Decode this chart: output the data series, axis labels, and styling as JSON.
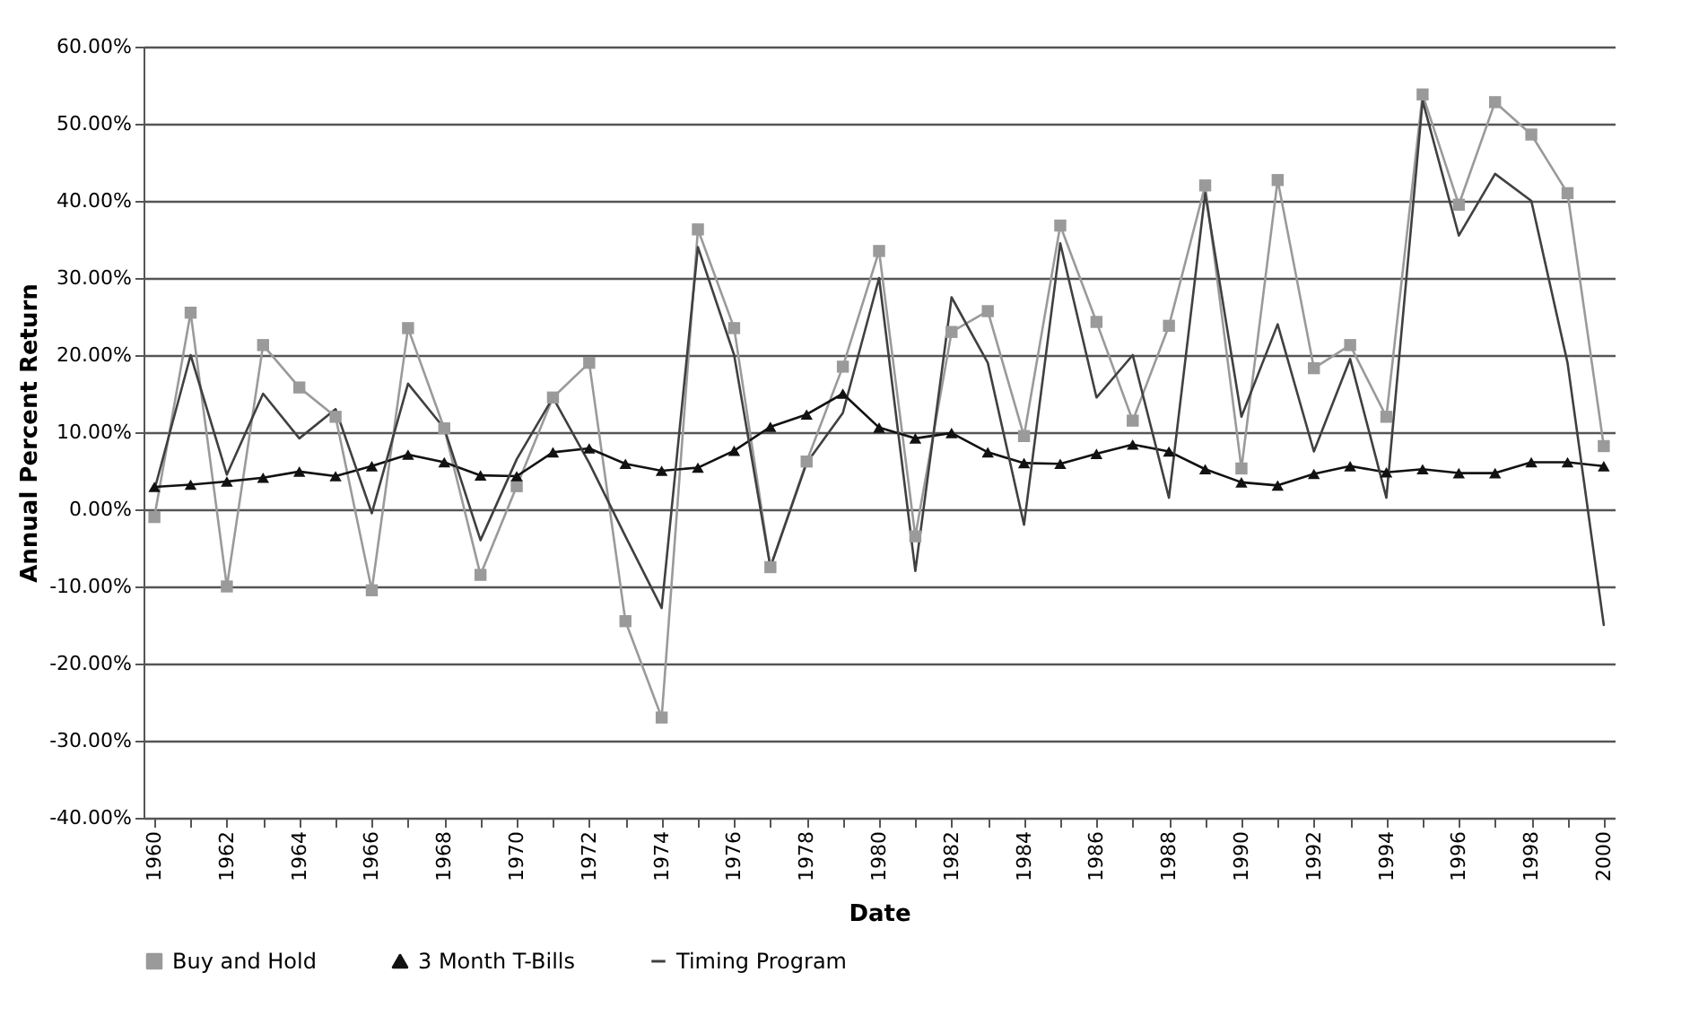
{
  "chart_data": {
    "type": "line",
    "xlabel": "Date",
    "ylabel": "Annual Percent Return",
    "categories": [
      "1960",
      null,
      "1962",
      null,
      "1964",
      null,
      "1966",
      null,
      "1968",
      null,
      "1970",
      null,
      "1972",
      null,
      "1974",
      null,
      "1976",
      null,
      "1978",
      null,
      "1980",
      null,
      "1982",
      null,
      "1984",
      null,
      "1986",
      null,
      "1988",
      null,
      "1990",
      null,
      "1992",
      null,
      "1994",
      null,
      "1996",
      null,
      "1998",
      null,
      "2000"
    ],
    "series": [
      {
        "name": "Buy and Hold",
        "color": "#9a9a9a",
        "marker": "square",
        "values": [
          -1,
          25.5,
          -10,
          21.3,
          15.8,
          12,
          -10.5,
          23.5,
          10.5,
          -8.5,
          3,
          14.5,
          19,
          -14.5,
          -27,
          36.3,
          23.5,
          -7.5,
          6.2,
          18.5,
          33.5,
          -3.5,
          23,
          25.7,
          9.5,
          36.8,
          24.3,
          11.5,
          23.8,
          42,
          5.3,
          42.7,
          18.3,
          21.3,
          12,
          53.8,
          39.5,
          52.8,
          48.6,
          41,
          8.2
        ]
      },
      {
        "name": "3 Month T-Bills",
        "color": "#111111",
        "marker": "triangle",
        "values": [
          2.9,
          3.2,
          3.6,
          4.1,
          4.9,
          4.3,
          5.6,
          7.1,
          6.1,
          4.4,
          4.3,
          7.4,
          7.9,
          5.9,
          5.0,
          5.4,
          7.6,
          10.7,
          12.3,
          15,
          10.6,
          9.2,
          9.9,
          7.4,
          6,
          5.9,
          7.2,
          8.4,
          7.5,
          5.2,
          3.5,
          3.1,
          4.6,
          5.6,
          4.8,
          5.2,
          4.7,
          4.7,
          6.1,
          6.1,
          5.6
        ]
      },
      {
        "name": "Timing Program",
        "color": "#404040",
        "marker": "none",
        "values": [
          2.5,
          20,
          4.5,
          15,
          9.2,
          13,
          -0.5,
          16.3,
          10.5,
          -4,
          6.5,
          14.5,
          6,
          -3.5,
          -12.8,
          34,
          20,
          -7.5,
          6,
          12.5,
          30,
          -8,
          27.5,
          19,
          -2,
          34.5,
          14.5,
          20,
          1.5,
          41,
          12,
          24,
          7.5,
          19.5,
          1.5,
          53,
          35.5,
          43.5,
          40,
          19,
          -15
        ]
      }
    ],
    "ylim": [
      -40,
      60
    ],
    "yticks": [
      {
        "value": 60,
        "label": "60.00%"
      },
      {
        "value": 50,
        "label": "50.00%"
      },
      {
        "value": 40,
        "label": "40.00%"
      },
      {
        "value": 30,
        "label": "30.00%"
      },
      {
        "value": 20,
        "label": "20.00%"
      },
      {
        "value": 10,
        "label": "10.00%"
      },
      {
        "value": 0,
        "label": "0.00%"
      },
      {
        "value": -10,
        "label": "-10.00%"
      },
      {
        "value": -20,
        "label": "-20.00%"
      },
      {
        "value": -30,
        "label": "-30.00%"
      },
      {
        "value": -40,
        "label": "-40.00%"
      }
    ],
    "grid": "y",
    "legend": "bottom",
    "line_style": "solid"
  }
}
